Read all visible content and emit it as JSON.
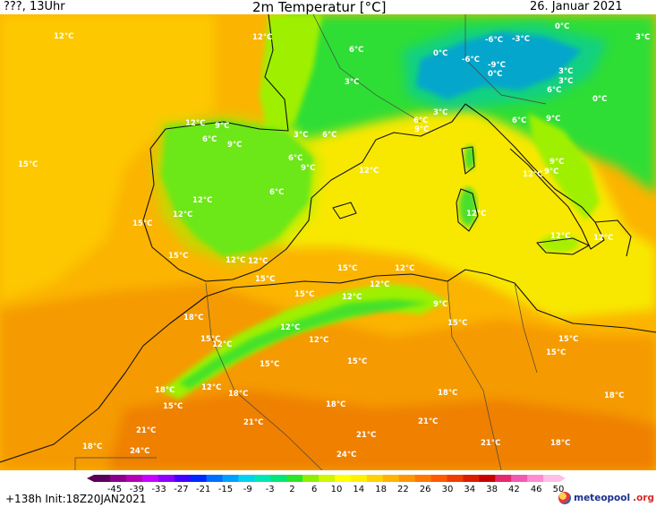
{
  "header": {
    "left": "???, 13Uhr",
    "title": "2m Temperatur [°C]",
    "date": "26. Januar 2021"
  },
  "footer": {
    "run": "+138h  Init:18Z20JAN2021",
    "logo_brand": "meteopool",
    "logo_tld": ".org"
  },
  "legend": {
    "ticks": [
      "-45",
      "-39",
      "-33",
      "-27",
      "-21",
      "-15",
      "-9",
      "-3",
      "2",
      "6",
      "10",
      "14",
      "18",
      "22",
      "26",
      "30",
      "34",
      "38",
      "42",
      "46",
      "50"
    ],
    "colors": [
      "#5a005a",
      "#8a008a",
      "#b400b4",
      "#c800ff",
      "#8c00ff",
      "#4600ff",
      "#0028ff",
      "#006eff",
      "#00a0ff",
      "#00d2f0",
      "#00e6b4",
      "#00e678",
      "#28e628",
      "#8cf000",
      "#d2f500",
      "#ffff00",
      "#fff000",
      "#ffd200",
      "#ffb400",
      "#ff9600",
      "#ff7800",
      "#ff5a00",
      "#f03c00",
      "#dc1e00",
      "#c80000",
      "#e6286e",
      "#f05ab4",
      "#ff8cd2",
      "#ffbee6"
    ]
  },
  "map_colors": {
    "sea_warm": "#fbb400",
    "sea_mid": "#fdc800",
    "inland_yellow": "#f8e800",
    "desert": "#f59a00",
    "hot": "#ef8000",
    "cool_green": "#2ede36",
    "mild_green": "#9ff000",
    "alps_blue": "#0a74ef",
    "cold_cyan": "#00c8b4",
    "coast": "#111111"
  },
  "labels": [
    {
      "t": "12°C"
    },
    {
      "t": "12°C"
    },
    {
      "t": "6°C"
    },
    {
      "t": "3°C"
    },
    {
      "t": "-6°C"
    },
    {
      "t": "-3°C"
    },
    {
      "t": "0°C"
    },
    {
      "t": "3°C"
    },
    {
      "t": "0°C"
    },
    {
      "t": "-6°C"
    },
    {
      "t": "-9°C"
    },
    {
      "t": "0°C"
    },
    {
      "t": "3°C"
    },
    {
      "t": "3°C"
    },
    {
      "t": "6°C"
    },
    {
      "t": "0°C"
    },
    {
      "t": "12°C"
    },
    {
      "t": "9°C"
    },
    {
      "t": "6°C"
    },
    {
      "t": "9°C"
    },
    {
      "t": "3°C"
    },
    {
      "t": "6°C"
    },
    {
      "t": "6°C"
    },
    {
      "t": "9°C"
    },
    {
      "t": "3°C"
    },
    {
      "t": "6°C"
    },
    {
      "t": "9°C"
    },
    {
      "t": "15°C"
    },
    {
      "t": "6°C"
    },
    {
      "t": "9°C"
    },
    {
      "t": "12°C"
    },
    {
      "t": "6°C"
    },
    {
      "t": "12°C"
    },
    {
      "t": "9°C"
    },
    {
      "t": "9°C"
    },
    {
      "t": "12°C"
    },
    {
      "t": "15°C"
    },
    {
      "t": "12°C"
    },
    {
      "t": "12°C"
    },
    {
      "t": "12°C"
    },
    {
      "t": "12°C"
    },
    {
      "t": "15°C"
    },
    {
      "t": "15°C"
    },
    {
      "t": "12°C"
    },
    {
      "t": "15°C"
    },
    {
      "t": "15°C"
    },
    {
      "t": "12°C"
    },
    {
      "t": "12°C"
    },
    {
      "t": "12°C"
    },
    {
      "t": "9°C"
    },
    {
      "t": "12°C"
    },
    {
      "t": "18°C"
    },
    {
      "t": "12°C"
    },
    {
      "t": "15°C"
    },
    {
      "t": "12°C"
    },
    {
      "t": "12°C"
    },
    {
      "t": "15°C"
    },
    {
      "t": "15°C"
    },
    {
      "t": "15°C"
    },
    {
      "t": "15°C"
    },
    {
      "t": "15°C"
    },
    {
      "t": "18°C"
    },
    {
      "t": "12°C"
    },
    {
      "t": "18°C"
    },
    {
      "t": "15°C"
    },
    {
      "t": "18°C"
    },
    {
      "t": "18°C"
    },
    {
      "t": "18°C"
    },
    {
      "t": "21°C"
    },
    {
      "t": "21°C"
    },
    {
      "t": "21°C"
    },
    {
      "t": "21°C"
    },
    {
      "t": "18°C"
    },
    {
      "t": "21°C"
    },
    {
      "t": "18°C"
    },
    {
      "t": "24°C"
    },
    {
      "t": "24°C"
    }
  ]
}
